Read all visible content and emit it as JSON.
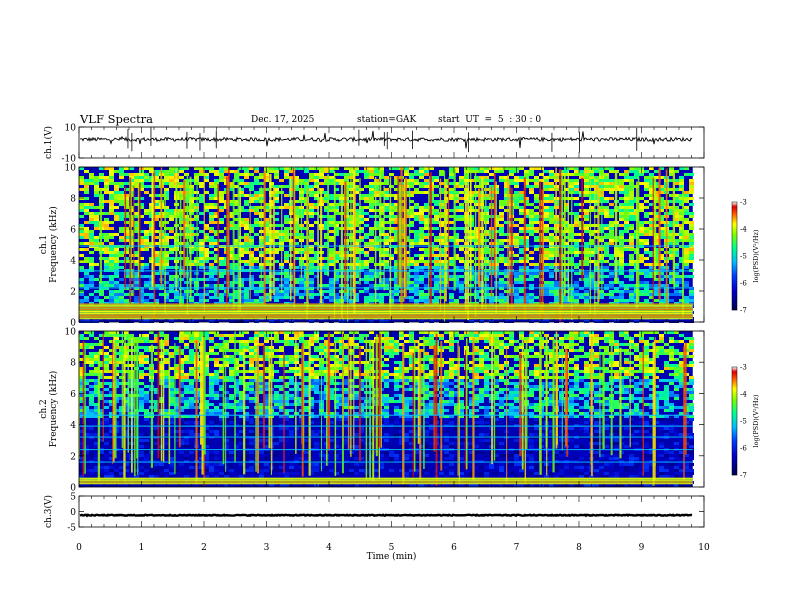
{
  "header": {
    "title": "VLF Spectra",
    "date": "Dec. 17, 2025",
    "station": "station=GAK",
    "start_ut": "start  UT  =  5  : 30 : 0"
  },
  "chart_data": [
    {
      "type": "line",
      "name": "ch1-waveform",
      "ylabel": "ch.1(V)",
      "ylim": [
        -10,
        10
      ],
      "yticks": [
        "10",
        "-10"
      ],
      "baseline": 2,
      "noise": 1.2
    },
    {
      "type": "heatmap",
      "name": "ch1-spectrogram",
      "ylabel": "ch.1\nFrequency (kHz)",
      "ylim": [
        0,
        10
      ],
      "yticks": [
        "0",
        "2",
        "4",
        "6",
        "8",
        "10"
      ],
      "colorbar": {
        "label": "log(PSD)(V²/Hz)",
        "range": [
          -7,
          -3
        ],
        "ticks": [
          "-3",
          "-4",
          "-5",
          "-6",
          "-7"
        ]
      },
      "noise_floor_khz": 1.2,
      "bright_band_khz": [
        0.2,
        1.2
      ],
      "lines_khz": [
        4.9,
        3.3,
        2.2
      ]
    },
    {
      "type": "heatmap",
      "name": "ch2-spectrogram",
      "ylabel": "ch.2\nFrequency (kHz)",
      "ylim": [
        0,
        10
      ],
      "yticks": [
        "0",
        "2",
        "4",
        "6",
        "8",
        "10"
      ],
      "colorbar": {
        "label": "log(PSD)(V²/Hz)",
        "range": [
          -7,
          -3
        ],
        "ticks": [
          "-3",
          "-4",
          "-5",
          "-6",
          "-7"
        ]
      },
      "noise_floor_khz": 4.5,
      "bright_band_khz": [
        0.2,
        0.6
      ],
      "lines_khz": [
        4.6,
        3.9,
        3.2,
        2.4,
        1.6
      ]
    },
    {
      "type": "line",
      "name": "ch3-waveform",
      "ylabel": "ch.3(V)",
      "ylim": [
        -5,
        5
      ],
      "yticks": [
        "5",
        "0",
        "-5"
      ],
      "baseline": -1.2,
      "noise": 0.15
    }
  ],
  "x_axis": {
    "label": "Time  (min)",
    "range": [
      0,
      10
    ],
    "ticks": [
      "0",
      "1",
      "2",
      "3",
      "4",
      "5",
      "6",
      "7",
      "8",
      "9",
      "10"
    ],
    "data_end": 9.82
  },
  "colors": {
    "scale": [
      "#000080",
      "#0000ff",
      "#00ffff",
      "#00ff00",
      "#ffff00",
      "#ff0000",
      "#ffffff"
    ]
  }
}
